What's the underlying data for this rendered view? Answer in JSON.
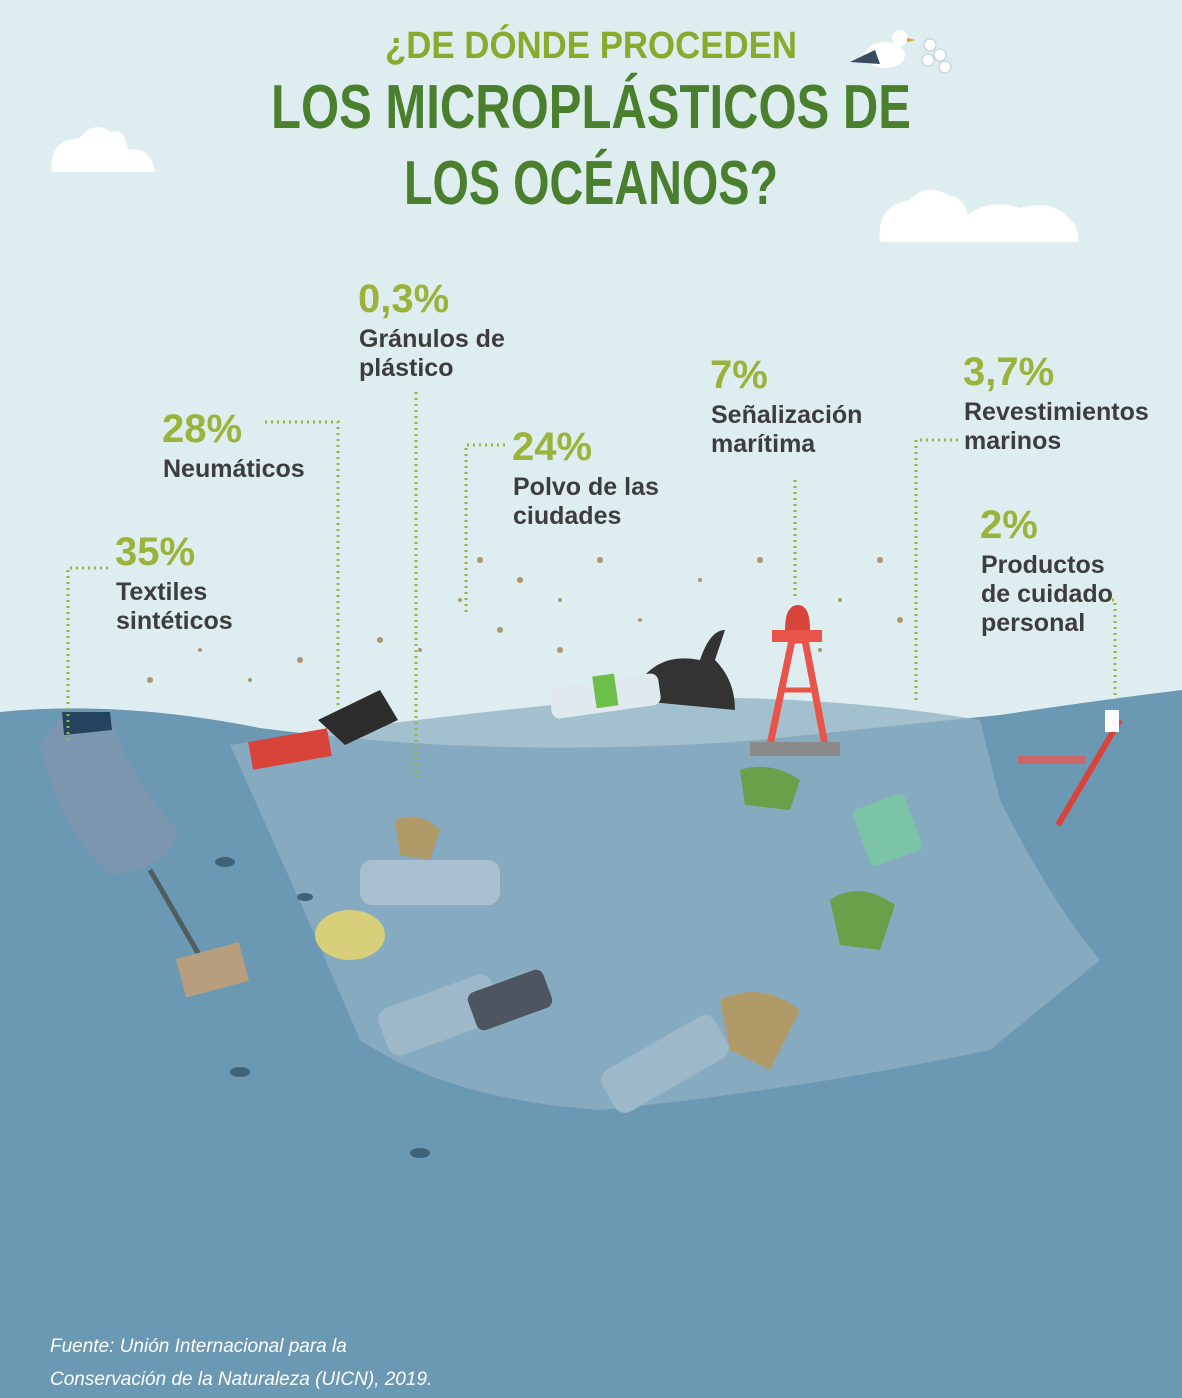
{
  "header": {
    "subtitle": "¿DE DÓNDE PROCEDEN",
    "title_lines": [
      "LOS MICROPLÁSTICOS DE",
      "LOS OCÉANOS?"
    ]
  },
  "items": [
    {
      "percent": "35%",
      "label_lines": [
        "Textiles",
        "sintéticos"
      ]
    },
    {
      "percent": "28%",
      "label_lines": [
        "Neumáticos"
      ]
    },
    {
      "percent": "0,3%",
      "label_lines": [
        "Gránulos de",
        "plástico"
      ]
    },
    {
      "percent": "24%",
      "label_lines": [
        "Polvo de las",
        "ciudades"
      ]
    },
    {
      "percent": "7%",
      "label_lines": [
        "Señalización",
        "marítima"
      ]
    },
    {
      "percent": "3,7%",
      "label_lines": [
        "Revestimientos",
        "marinos"
      ]
    },
    {
      "percent": "2%",
      "label_lines": [
        "Productos",
        "de cuidado",
        "personal"
      ]
    }
  ],
  "source_lines": [
    "Fuente: Unión Internacional para la",
    "Conservación de la Naturaleza (UICN), 2019."
  ]
}
